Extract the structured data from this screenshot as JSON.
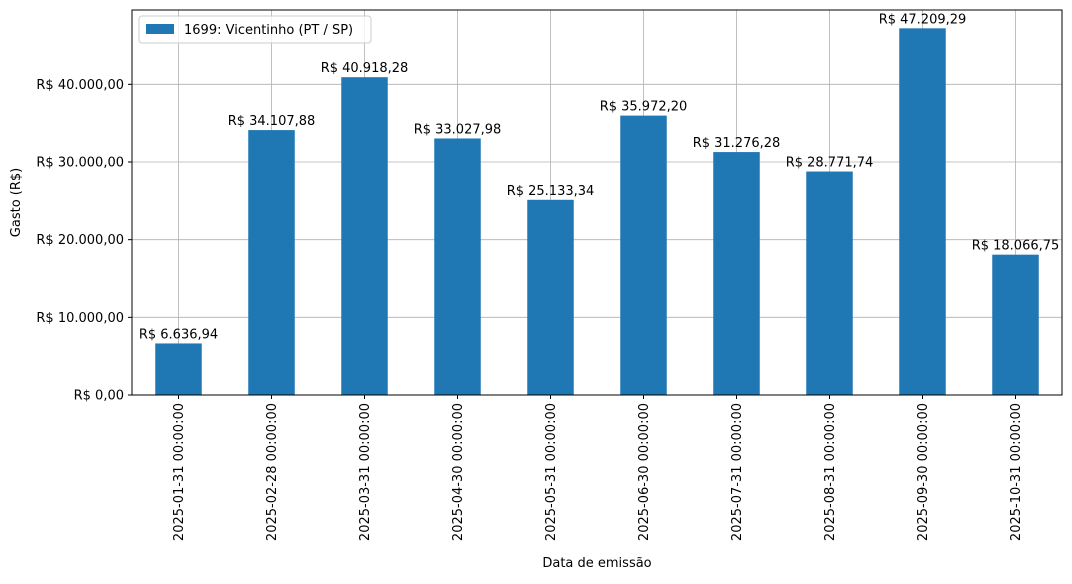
{
  "chart_data": {
    "type": "bar",
    "xlabel": "Data de emissão",
    "ylabel": "Gasto (R$)",
    "categories": [
      "2025-01-31 00:00:00",
      "2025-02-28 00:00:00",
      "2025-03-31 00:00:00",
      "2025-04-30 00:00:00",
      "2025-05-31 00:00:00",
      "2025-06-30 00:00:00",
      "2025-07-31 00:00:00",
      "2025-08-31 00:00:00",
      "2025-09-30 00:00:00",
      "2025-10-31 00:00:00"
    ],
    "series": [
      {
        "name": "1699: Vicentinho (PT / SP)",
        "color": "#1f77b4",
        "values": [
          6636.94,
          34107.88,
          40918.28,
          33027.98,
          25133.34,
          35972.2,
          31276.28,
          28771.74,
          47209.29,
          18066.75
        ],
        "labels": [
          "R$ 6.636,94",
          "R$ 34.107,88",
          "R$ 40.918,28",
          "R$ 33.027,98",
          "R$ 25.133,34",
          "R$ 35.972,20",
          "R$ 31.276,28",
          "R$ 28.771,74",
          "R$ 47.209,29",
          "R$ 18.066,75"
        ]
      }
    ],
    "yticks": [
      0,
      10000,
      20000,
      30000,
      40000
    ],
    "ytick_labels": [
      "R$ 0,00",
      "R$ 10.000,00",
      "R$ 20.000,00",
      "R$ 30.000,00",
      "R$ 40.000,00"
    ],
    "ylim": [
      0,
      49569.75
    ],
    "grid": true,
    "legend": "top-left"
  }
}
